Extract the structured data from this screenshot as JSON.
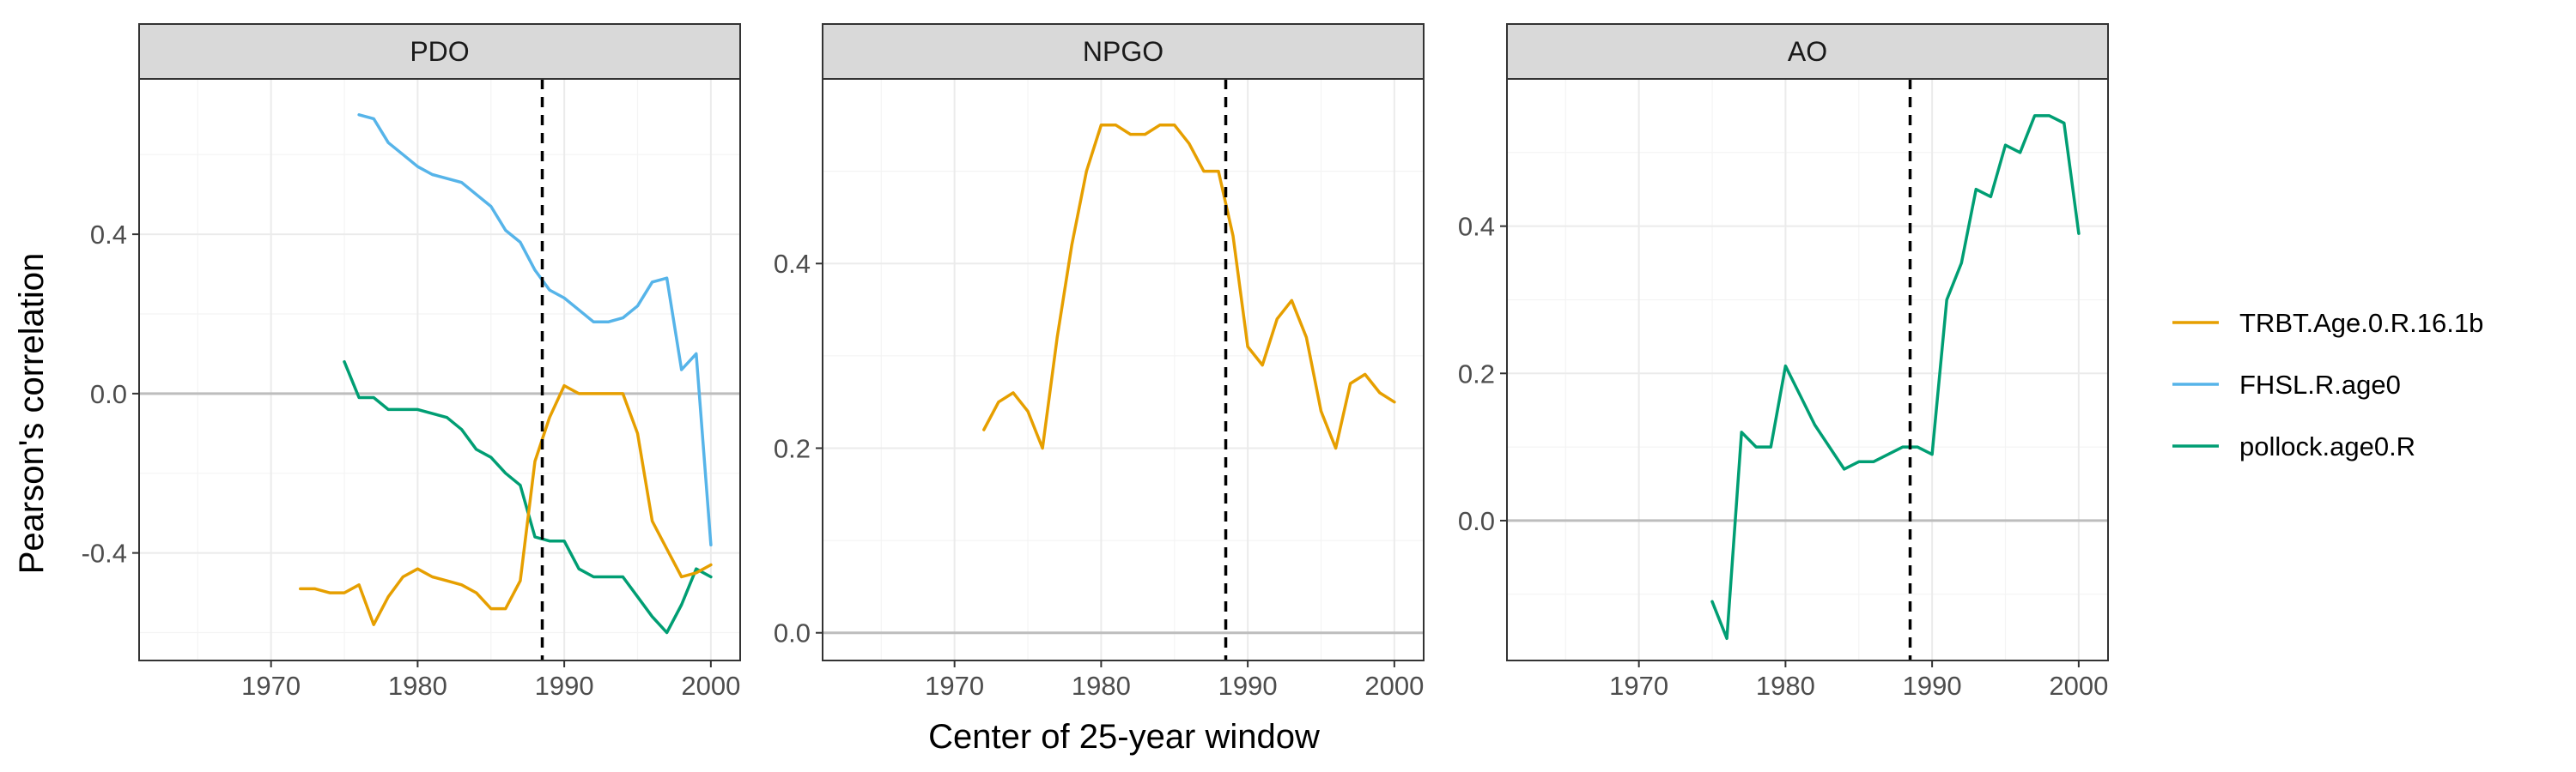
{
  "colors": {
    "TRBT.Age.0.R.16.1b": "#E69F00",
    "FHSL.R.age0": "#56B4E9",
    "pollock.age0.R": "#009E73"
  },
  "legend": {
    "placement": "right",
    "entries": [
      "TRBT.Age.0.R.16.1b",
      "FHSL.R.age0",
      "pollock.age0.R"
    ]
  },
  "chart_data": {
    "type": "line",
    "xlabel": "Center of 25-year window",
    "ylabel": "Pearson's correlation",
    "xlim": [
      1961,
      2002
    ],
    "xticks": [
      1970,
      1980,
      1990,
      2000
    ],
    "grid": true,
    "panels": [
      {
        "title": "PDO",
        "ylim": [
          -0.67,
          0.79
        ],
        "yticks": [
          -0.4,
          0.0,
          0.4
        ],
        "yticklabels": [
          "-0.4",
          "0.0",
          "0.4"
        ],
        "vline": 1988.5,
        "series": [
          {
            "name": "FHSL.R.age0",
            "x": [
              1976,
              1977,
              1978,
              1979,
              1980,
              1981,
              1982,
              1983,
              1984,
              1985,
              1986,
              1987,
              1988,
              1989,
              1990,
              1991,
              1992,
              1993,
              1994,
              1995,
              1996,
              1997,
              1998,
              1999,
              2000
            ],
            "y": [
              0.7,
              0.69,
              0.63,
              0.6,
              0.57,
              0.55,
              0.54,
              0.53,
              0.5,
              0.47,
              0.41,
              0.38,
              0.31,
              0.26,
              0.24,
              0.21,
              0.18,
              0.18,
              0.19,
              0.22,
              0.28,
              0.29,
              0.06,
              0.1,
              -0.38
            ]
          },
          {
            "name": "pollock.age0.R",
            "x": [
              1975,
              1976,
              1977,
              1978,
              1979,
              1980,
              1981,
              1982,
              1983,
              1984,
              1985,
              1986,
              1987,
              1988,
              1989,
              1990,
              1991,
              1992,
              1993,
              1994,
              1995,
              1996,
              1997,
              1998,
              1999,
              2000
            ],
            "y": [
              0.08,
              -0.01,
              -0.01,
              -0.04,
              -0.04,
              -0.04,
              -0.05,
              -0.06,
              -0.09,
              -0.14,
              -0.16,
              -0.2,
              -0.23,
              -0.36,
              -0.37,
              -0.37,
              -0.44,
              -0.46,
              -0.46,
              -0.46,
              -0.51,
              -0.56,
              -0.6,
              -0.53,
              -0.44,
              -0.46
            ]
          },
          {
            "name": "TRBT.Age.0.R.16.1b",
            "x": [
              1972,
              1973,
              1974,
              1975,
              1976,
              1977,
              1978,
              1979,
              1980,
              1981,
              1982,
              1983,
              1984,
              1985,
              1986,
              1987,
              1988,
              1989,
              1990,
              1991,
              1992,
              1993,
              1994,
              1995,
              1996,
              1997,
              1998,
              1999,
              2000
            ],
            "y": [
              -0.49,
              -0.49,
              -0.5,
              -0.5,
              -0.48,
              -0.58,
              -0.51,
              -0.46,
              -0.44,
              -0.46,
              -0.47,
              -0.48,
              -0.5,
              -0.54,
              -0.54,
              -0.47,
              -0.17,
              -0.06,
              0.02,
              0.0,
              0.0,
              0.0,
              0.0,
              -0.1,
              -0.32,
              -0.39,
              -0.46,
              -0.45,
              -0.43
            ]
          }
        ]
      },
      {
        "title": "NPGO",
        "ylim": [
          -0.03,
          0.6
        ],
        "yticks": [
          0.0,
          0.2,
          0.4
        ],
        "yticklabels": [
          "0.0",
          "0.2",
          "0.4"
        ],
        "vline": 1988.5,
        "series": [
          {
            "name": "TRBT.Age.0.R.16.1b",
            "x": [
              1972,
              1973,
              1974,
              1975,
              1976,
              1977,
              1978,
              1979,
              1980,
              1981,
              1982,
              1983,
              1984,
              1985,
              1986,
              1987,
              1988,
              1989,
              1990,
              1991,
              1992,
              1993,
              1994,
              1995,
              1996,
              1997,
              1998,
              1999,
              2000
            ],
            "y": [
              0.22,
              0.25,
              0.26,
              0.24,
              0.2,
              0.32,
              0.42,
              0.5,
              0.55,
              0.55,
              0.54,
              0.54,
              0.55,
              0.55,
              0.53,
              0.5,
              0.5,
              0.43,
              0.31,
              0.29,
              0.34,
              0.36,
              0.32,
              0.24,
              0.2,
              0.27,
              0.28,
              0.26,
              0.25
            ]
          }
        ]
      },
      {
        "title": "AO",
        "ylim": [
          -0.19,
          0.6
        ],
        "yticks": [
          0.0,
          0.2,
          0.4
        ],
        "yticklabels": [
          "0.0",
          "0.2",
          "0.4"
        ],
        "vline": 1988.5,
        "series": [
          {
            "name": "pollock.age0.R",
            "x": [
              1975,
              1976,
              1977,
              1978,
              1979,
              1980,
              1981,
              1982,
              1983,
              1984,
              1985,
              1986,
              1987,
              1988,
              1989,
              1990,
              1991,
              1992,
              1993,
              1994,
              1995,
              1996,
              1997,
              1998,
              1999,
              2000
            ],
            "y": [
              -0.11,
              -0.16,
              0.12,
              0.1,
              0.1,
              0.21,
              0.17,
              0.13,
              0.1,
              0.07,
              0.08,
              0.08,
              0.09,
              0.1,
              0.1,
              0.09,
              0.3,
              0.35,
              0.45,
              0.44,
              0.51,
              0.5,
              0.55,
              0.55,
              0.54,
              0.39
            ]
          }
        ]
      }
    ]
  }
}
